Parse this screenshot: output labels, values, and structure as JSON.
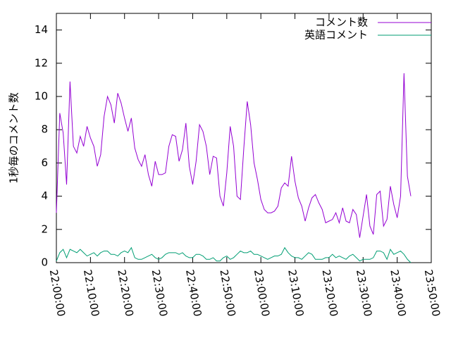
{
  "chart_data": {
    "type": "line",
    "ylabel": "1秒毎のコメント数",
    "x": [
      "22:00:00",
      "22:01:00",
      "22:02:00",
      "22:03:00",
      "22:04:00",
      "22:05:00",
      "22:06:00",
      "22:07:00",
      "22:08:00",
      "22:09:00",
      "22:10:00",
      "22:11:00",
      "22:12:00",
      "22:13:00",
      "22:14:00",
      "22:15:00",
      "22:16:00",
      "22:17:00",
      "22:18:00",
      "22:19:00",
      "22:20:00",
      "22:21:00",
      "22:22:00",
      "22:23:00",
      "22:24:00",
      "22:25:00",
      "22:26:00",
      "22:27:00",
      "22:28:00",
      "22:29:00",
      "22:30:00",
      "22:31:00",
      "22:32:00",
      "22:33:00",
      "22:34:00",
      "22:35:00",
      "22:36:00",
      "22:37:00",
      "22:38:00",
      "22:39:00",
      "22:40:00",
      "22:41:00",
      "22:42:00",
      "22:43:00",
      "22:44:00",
      "22:45:00",
      "22:46:00",
      "22:47:00",
      "22:48:00",
      "22:49:00",
      "22:50:00",
      "22:51:00",
      "22:52:00",
      "22:53:00",
      "22:54:00",
      "22:55:00",
      "22:56:00",
      "22:57:00",
      "22:58:00",
      "22:59:00",
      "23:00:00",
      "23:01:00",
      "23:02:00",
      "23:03:00",
      "23:04:00",
      "23:05:00",
      "23:06:00",
      "23:07:00",
      "23:08:00",
      "23:09:00",
      "23:10:00",
      "23:11:00",
      "23:12:00",
      "23:13:00",
      "23:14:00",
      "23:15:00",
      "23:16:00",
      "23:17:00",
      "23:18:00",
      "23:19:00",
      "23:20:00",
      "23:21:00",
      "23:22:00",
      "23:23:00",
      "23:24:00",
      "23:25:00",
      "23:26:00",
      "23:27:00",
      "23:28:00",
      "23:29:00",
      "23:30:00",
      "23:31:00",
      "23:32:00",
      "23:33:00",
      "23:34:00",
      "23:35:00",
      "23:36:00",
      "23:37:00",
      "23:38:00",
      "23:39:00",
      "23:40:00",
      "23:41:00",
      "23:42:00",
      "23:43:00",
      "23:44:00"
    ],
    "series": [
      {
        "name": "コメント数",
        "color": "#9400d3",
        "values": [
          3.0,
          9.0,
          7.8,
          4.7,
          10.9,
          7.0,
          6.6,
          7.6,
          7.0,
          8.2,
          7.5,
          7.0,
          5.8,
          6.5,
          8.8,
          10.0,
          9.5,
          8.4,
          10.2,
          9.6,
          8.7,
          7.9,
          8.7,
          6.9,
          6.2,
          5.8,
          6.5,
          5.3,
          4.6,
          6.1,
          5.3,
          5.3,
          5.4,
          7.0,
          7.7,
          7.6,
          6.1,
          6.8,
          8.4,
          5.8,
          4.7,
          6.1,
          8.3,
          7.9,
          7.0,
          5.3,
          6.4,
          6.3,
          4.0,
          3.4,
          5.4,
          8.2,
          7.0,
          4.0,
          3.8,
          6.9,
          9.7,
          8.3,
          6.0,
          5.0,
          3.8,
          3.2,
          3.0,
          3.0,
          3.1,
          3.4,
          4.5,
          4.8,
          4.6,
          6.4,
          4.9,
          3.9,
          3.4,
          2.5,
          3.3,
          3.9,
          4.1,
          3.6,
          3.2,
          2.4,
          2.5,
          2.6,
          3.0,
          2.4,
          3.3,
          2.5,
          2.4,
          3.2,
          2.9,
          1.5,
          2.8,
          4.1,
          2.2,
          1.7,
          4.1,
          4.3,
          2.2,
          2.6,
          4.6,
          3.5,
          2.7,
          4.0,
          11.4,
          5.2,
          4.0
        ]
      },
      {
        "name": "英語コメント",
        "color": "#009e73",
        "values": [
          0.1,
          0.6,
          0.8,
          0.3,
          0.8,
          0.7,
          0.6,
          0.8,
          0.6,
          0.4,
          0.5,
          0.6,
          0.4,
          0.6,
          0.7,
          0.7,
          0.5,
          0.5,
          0.4,
          0.6,
          0.7,
          0.6,
          0.9,
          0.3,
          0.2,
          0.2,
          0.3,
          0.4,
          0.5,
          0.3,
          0.2,
          0.3,
          0.5,
          0.6,
          0.6,
          0.6,
          0.5,
          0.6,
          0.4,
          0.3,
          0.3,
          0.5,
          0.5,
          0.4,
          0.2,
          0.2,
          0.3,
          0.1,
          0.1,
          0.3,
          0.4,
          0.2,
          0.3,
          0.5,
          0.7,
          0.6,
          0.6,
          0.7,
          0.5,
          0.5,
          0.4,
          0.3,
          0.2,
          0.3,
          0.4,
          0.4,
          0.5,
          0.9,
          0.6,
          0.4,
          0.3,
          0.3,
          0.2,
          0.4,
          0.6,
          0.5,
          0.2,
          0.2,
          0.2,
          0.3,
          0.3,
          0.5,
          0.3,
          0.4,
          0.3,
          0.2,
          0.4,
          0.5,
          0.3,
          0.1,
          0.2,
          0.2,
          0.2,
          0.3,
          0.7,
          0.7,
          0.6,
          0.2,
          0.8,
          0.5,
          0.6,
          0.7,
          0.5,
          0.2,
          0.0
        ]
      }
    ],
    "xlim": [
      "22:00:00",
      "23:50:00"
    ],
    "xticks": [
      "22:00:00",
      "22:10:00",
      "22:20:00",
      "22:30:00",
      "22:40:00",
      "22:50:00",
      "23:00:00",
      "23:10:00",
      "23:20:00",
      "23:30:00",
      "23:40:00",
      "23:50:00"
    ],
    "ylim": [
      0,
      15
    ],
    "yticks": [
      0,
      2,
      4,
      6,
      8,
      10,
      12,
      14
    ],
    "legend": "top-right",
    "grid": false
  }
}
